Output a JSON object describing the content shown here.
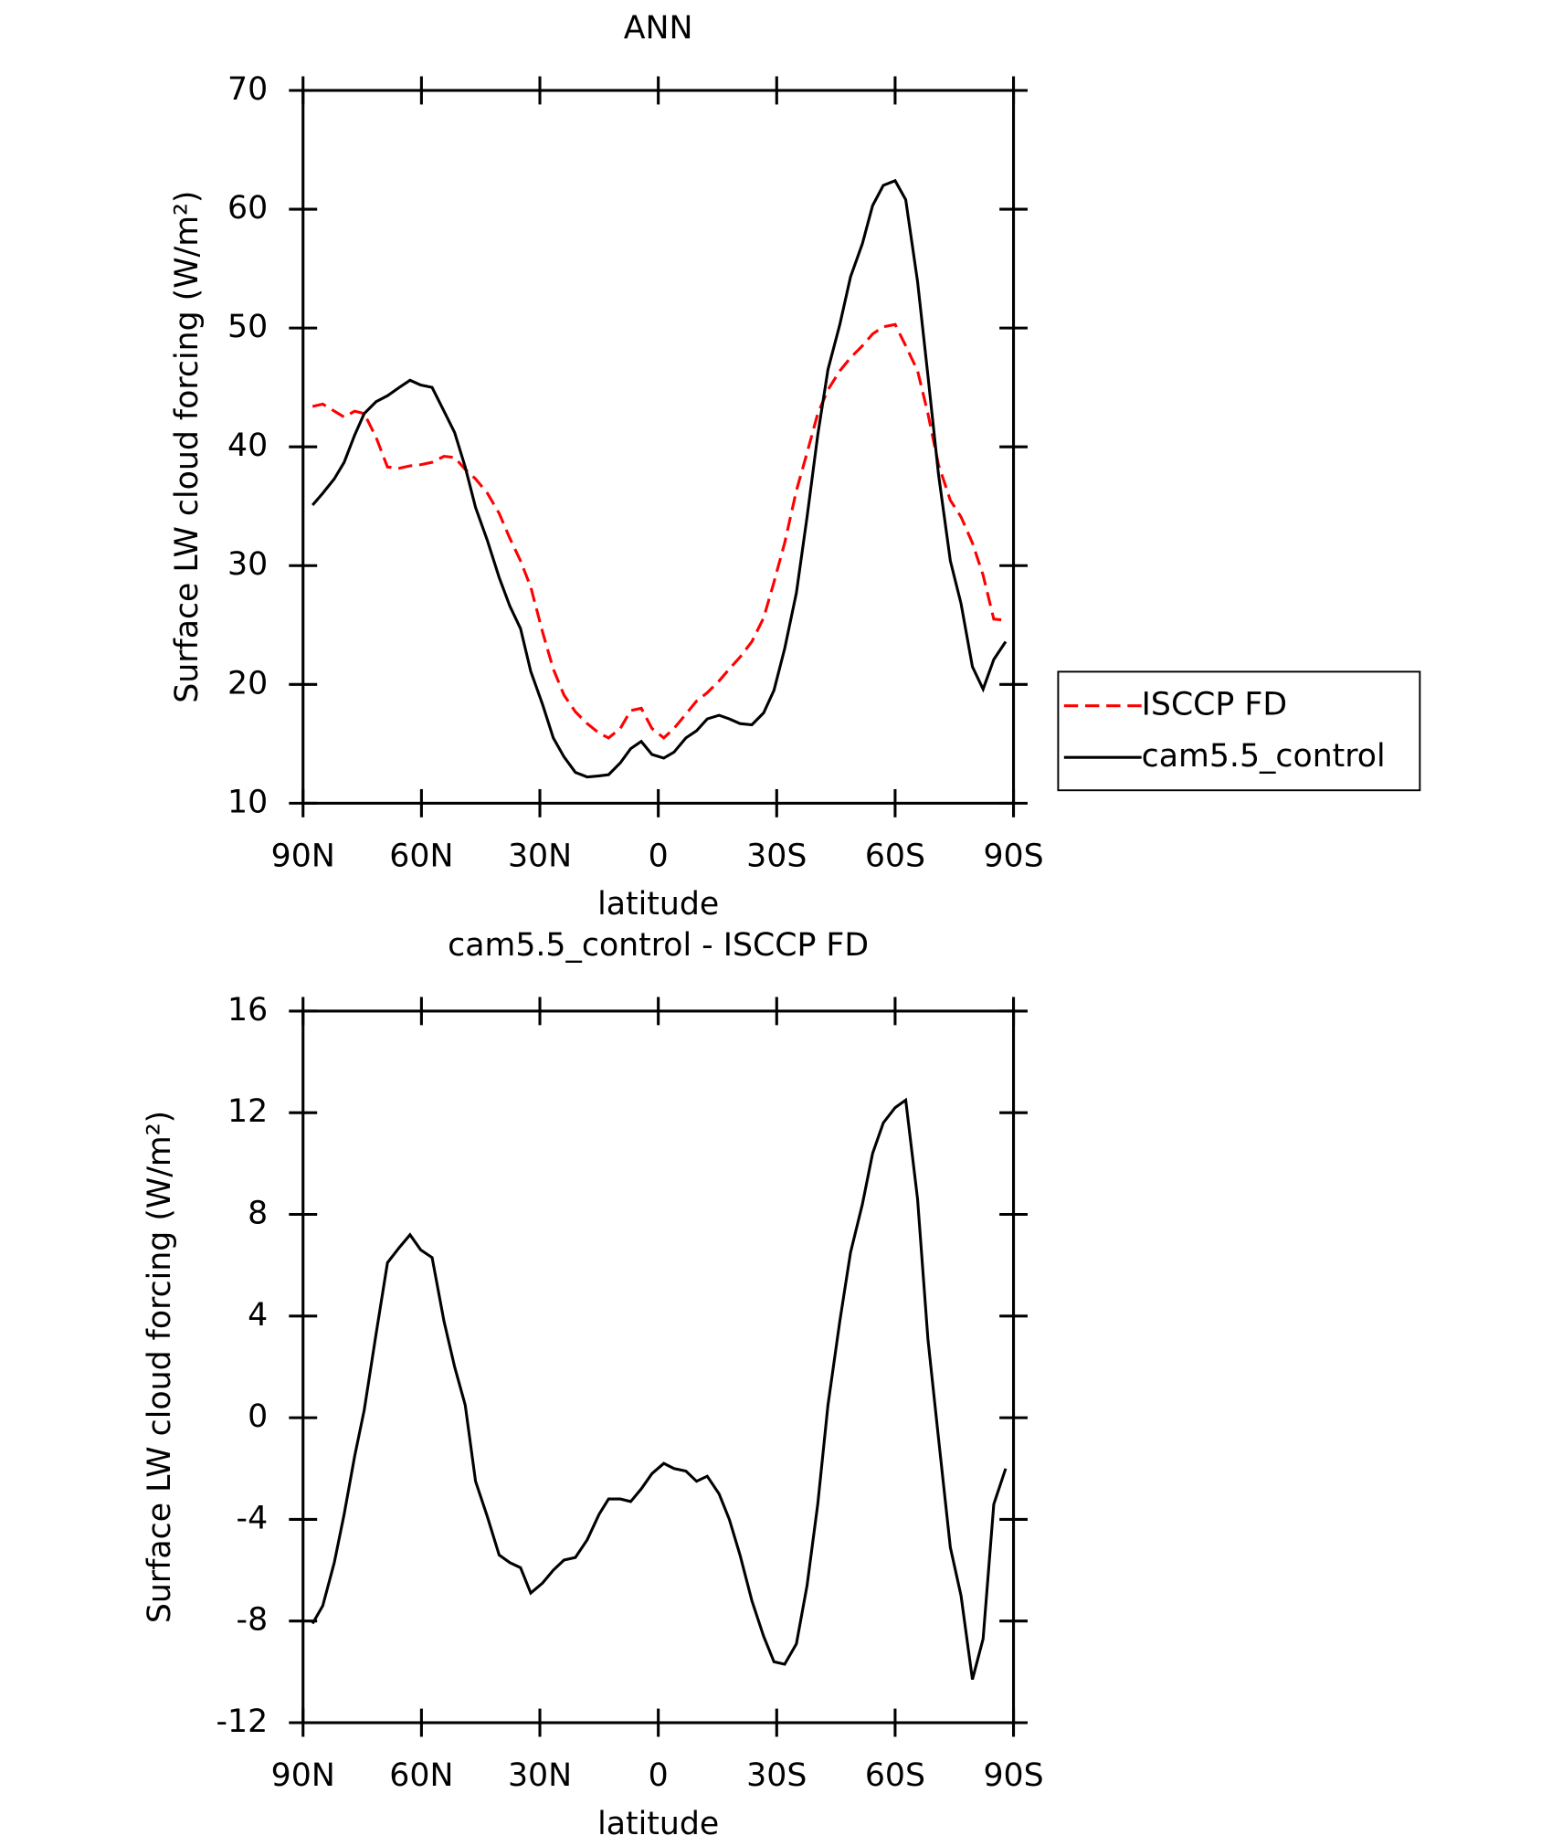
{
  "chart_data": [
    {
      "type": "line",
      "title": "ANN",
      "x_label": "latitude",
      "y_label": "Surface LW cloud forcing (W/m²)",
      "x": [
        87.6,
        85,
        82.1,
        79.6,
        76.9,
        74.5,
        71.5,
        68.6,
        65.6,
        62.9,
        60.2,
        57.3,
        54.3,
        51.6,
        48.9,
        46.3,
        43.3,
        40.3,
        37.6,
        34.9,
        32.3,
        29.3,
        26.6,
        23.9,
        21,
        18,
        15,
        12.6,
        9.6,
        7,
        4.3,
        1.6,
        -1.4,
        -4,
        -7,
        -9.7,
        -12.4,
        -15.4,
        -18,
        -20.7,
        -23.7,
        -26.7,
        -29.3,
        -32,
        -35,
        -37.7,
        -40.4,
        -43,
        -46,
        -48.7,
        -51.7,
        -54.3,
        -57,
        -60,
        -62.7,
        -65.7,
        -68.3,
        -71,
        -74,
        -76.7,
        -79.6,
        -82.3,
        -85,
        -88
      ],
      "series": [
        {
          "name": "ISCCP FD",
          "color": "#ff0000",
          "line_style": "dashed",
          "values": [
            43.4,
            43.6,
            43.0,
            42.5,
            43.0,
            42.8,
            40.8,
            38.3,
            38.2,
            38.4,
            38.5,
            38.7,
            39.2,
            39.1,
            38.1,
            37.3,
            36.1,
            34.4,
            32.3,
            30.4,
            28.2,
            24.4,
            21.3,
            19.1,
            17.7,
            16.7,
            15.9,
            15.5,
            16.3,
            17.8,
            18.0,
            16.3,
            15.5,
            16.3,
            17.5,
            18.6,
            19.3,
            20.3,
            21.3,
            22.3,
            23.6,
            25.6,
            28.6,
            31.9,
            36.3,
            39.5,
            42.8,
            44.8,
            46.4,
            47.5,
            48.5,
            49.5,
            50.1,
            50.3,
            48.5,
            46.4,
            42.8,
            38.5,
            35.5,
            34.1,
            31.9,
            29.2,
            25.5,
            25.4
          ]
        },
        {
          "name": "cam5.5_control",
          "color": "#000000",
          "line_style": "solid",
          "values": [
            35.1,
            36.1,
            37.3,
            38.7,
            41.0,
            42.8,
            43.8,
            44.3,
            45.0,
            45.6,
            45.2,
            45.0,
            43.0,
            41.2,
            38.3,
            34.9,
            32.1,
            29.0,
            26.6,
            24.7,
            21.1,
            18.3,
            15.5,
            13.9,
            12.6,
            12.2,
            12.3,
            12.4,
            13.4,
            14.6,
            15.2,
            14.1,
            13.8,
            14.3,
            15.5,
            16.1,
            17.1,
            17.4,
            17.1,
            16.7,
            16.6,
            17.6,
            19.5,
            23.0,
            27.7,
            34.1,
            41.0,
            46.5,
            50.3,
            54.3,
            57.1,
            60.3,
            62.0,
            62.4,
            60.8,
            53.9,
            46.0,
            37.7,
            30.4,
            26.8,
            21.5,
            19.6,
            22.1,
            23.6
          ]
        }
      ],
      "xlim": [
        90,
        -90
      ],
      "xticks": [
        {
          "value": 90,
          "label": "90N"
        },
        {
          "value": 60,
          "label": "60N"
        },
        {
          "value": 30,
          "label": "30N"
        },
        0,
        {
          "value": -30,
          "label": "30S"
        },
        {
          "value": -60,
          "label": "60S"
        },
        {
          "value": -90,
          "label": "90S"
        }
      ],
      "ylim": [
        10,
        70
      ],
      "yticks": [
        10,
        20,
        30,
        40,
        50,
        60,
        70
      ],
      "legend": "right"
    },
    {
      "type": "line",
      "title": "cam5.5_control - ISCCP FD",
      "x_label": "latitude",
      "y_label": "Surface LW cloud forcing (W/m²)",
      "x": [
        87.6,
        85,
        82.1,
        79.6,
        76.9,
        74.5,
        71.5,
        68.6,
        65.6,
        62.9,
        60.2,
        57.3,
        54.3,
        51.6,
        48.9,
        46.3,
        43.3,
        40.3,
        37.6,
        34.9,
        32.3,
        29.3,
        26.6,
        23.9,
        21,
        18,
        15,
        12.6,
        9.6,
        7,
        4.3,
        1.6,
        -1.4,
        -4,
        -7,
        -9.7,
        -12.4,
        -15.4,
        -18,
        -20.7,
        -23.7,
        -26.7,
        -29.3,
        -32,
        -35,
        -37.7,
        -40.4,
        -43,
        -46,
        -48.7,
        -51.7,
        -54.3,
        -57,
        -60,
        -62.7,
        -65.7,
        -68.3,
        -71,
        -74,
        -76.7,
        -79.6,
        -82.3,
        -85,
        -88
      ],
      "series": [
        {
          "color": "#000000",
          "line_style": "solid",
          "values": [
            -8.1,
            -7.4,
            -5.7,
            -3.8,
            -1.5,
            0.3,
            3.3,
            6.1,
            6.7,
            7.2,
            6.6,
            6.3,
            3.8,
            2.0,
            0.5,
            -2.5,
            -3.9,
            -5.4,
            -5.7,
            -5.9,
            -6.9,
            -6.5,
            -6.0,
            -5.6,
            -5.5,
            -4.8,
            -3.8,
            -3.2,
            -3.2,
            -3.3,
            -2.8,
            -2.2,
            -1.8,
            -2.0,
            -2.1,
            -2.5,
            -2.3,
            -3.0,
            -4.0,
            -5.4,
            -7.2,
            -8.6,
            -9.6,
            -9.7,
            -8.9,
            -6.6,
            -3.4,
            0.5,
            3.8,
            6.5,
            8.4,
            10.4,
            11.6,
            12.2,
            12.5,
            8.6,
            3.1,
            -0.8,
            -5.1,
            -7.0,
            -10.3,
            -8.7,
            -3.4,
            -2.0
          ]
        }
      ],
      "xlim": [
        90,
        -90
      ],
      "xticks": [
        {
          "value": 90,
          "label": "90N"
        },
        {
          "value": 60,
          "label": "60N"
        },
        {
          "value": 30,
          "label": "30N"
        },
        0,
        {
          "value": -30,
          "label": "30S"
        },
        {
          "value": -60,
          "label": "60S"
        },
        {
          "value": -90,
          "label": "90S"
        }
      ],
      "ylim": [
        -12,
        16
      ],
      "yticks": [
        -12,
        -8,
        -4,
        0,
        4,
        8,
        12,
        16
      ]
    }
  ]
}
